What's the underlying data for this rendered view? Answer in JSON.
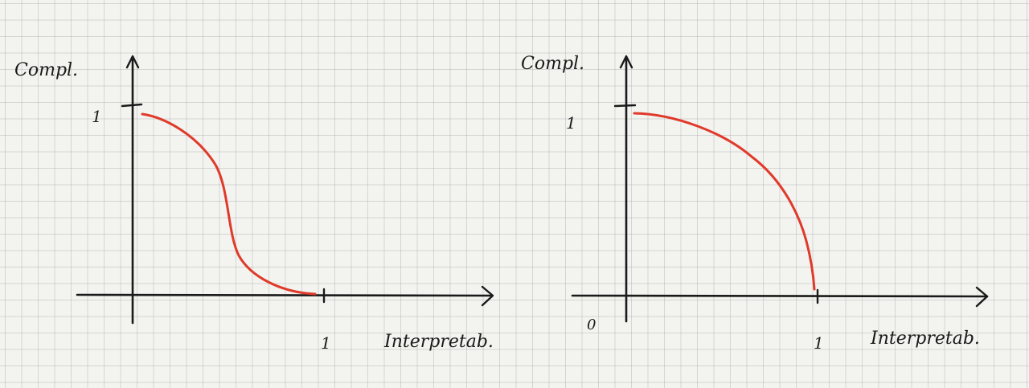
{
  "palette": {
    "ink": "#1a1a1a",
    "curve": "#e03a2a",
    "paper": "#f3f3f0"
  },
  "left_plot": {
    "y_label": "Compl.",
    "x_label": "Interpretab.",
    "y_tick": "1",
    "x_tick": "1",
    "origin": ""
  },
  "right_plot": {
    "y_label": "Compl.",
    "x_label": "Interpretab.",
    "y_tick": "1",
    "x_tick": "1",
    "origin": "0"
  }
}
